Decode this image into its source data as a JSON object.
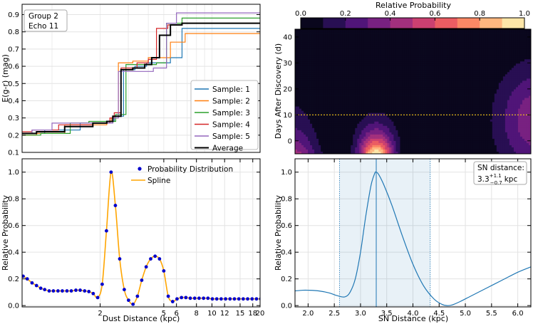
{
  "chart_data": [
    {
      "type": "line",
      "panel": "top-left",
      "title": "",
      "xlabel": "",
      "ylabel": "E(g-r) (mag)",
      "annotation": [
        "Group 2",
        "Echo 11"
      ],
      "xscale": "log",
      "xlim": [
        0.65,
        20
      ],
      "ylim": [
        0.1,
        0.96
      ],
      "yticks": [
        "0.1",
        "0.2",
        "0.3",
        "0.4",
        "0.5",
        "0.6",
        "0.7",
        "0.8",
        "0.9"
      ],
      "grid": true,
      "legend_position": "lower-right",
      "series": [
        {
          "name": "Sample: 1",
          "color": "#1f77b4",
          "x": [
            0.65,
            0.9,
            1.5,
            2.3,
            2.45,
            2.8,
            3.3,
            3.9,
            4.1,
            5.5,
            6.5,
            20
          ],
          "y": [
            0.21,
            0.23,
            0.27,
            0.28,
            0.31,
            0.58,
            0.6,
            0.62,
            0.62,
            0.65,
            0.82,
            0.82
          ]
        },
        {
          "name": "Sample: 2",
          "color": "#ff7f0e",
          "x": [
            0.65,
            0.8,
            1.2,
            2.2,
            2.35,
            2.6,
            3.2,
            4.0,
            5.5,
            6.8,
            20
          ],
          "y": [
            0.2,
            0.21,
            0.26,
            0.28,
            0.3,
            0.62,
            0.63,
            0.65,
            0.74,
            0.79,
            0.79
          ]
        },
        {
          "name": "Sample: 3",
          "color": "#2ca02c",
          "x": [
            0.65,
            0.85,
            1.3,
            1.7,
            2.2,
            2.5,
            2.9,
            3.5,
            4.5,
            5.2,
            6.5,
            20
          ],
          "y": [
            0.2,
            0.21,
            0.27,
            0.28,
            0.28,
            0.32,
            0.61,
            0.61,
            0.62,
            0.85,
            0.88,
            0.88
          ]
        },
        {
          "name": "Sample: 4",
          "color": "#d62728",
          "x": [
            0.65,
            0.75,
            1.1,
            1.8,
            2.3,
            2.45,
            2.7,
            3.4,
            4.0,
            4.5,
            5.3,
            6.5,
            20
          ],
          "y": [
            0.22,
            0.23,
            0.26,
            0.27,
            0.3,
            0.33,
            0.59,
            0.62,
            0.64,
            0.82,
            0.84,
            0.85,
            0.85
          ]
        },
        {
          "name": "Sample: 5",
          "color": "#9467bd",
          "x": [
            0.65,
            0.75,
            1.0,
            2.0,
            2.4,
            2.6,
            3.0,
            4.0,
            4.3,
            5.2,
            6.0,
            20
          ],
          "y": [
            0.21,
            0.23,
            0.27,
            0.27,
            0.3,
            0.57,
            0.57,
            0.57,
            0.59,
            0.85,
            0.91,
            0.91
          ]
        },
        {
          "name": "Average",
          "color": "#000000",
          "x": [
            0.65,
            0.8,
            1.2,
            1.8,
            2.2,
            2.4,
            2.7,
            3.2,
            3.8,
            4.2,
            4.7,
            5.5,
            6.5,
            20
          ],
          "y": [
            0.21,
            0.22,
            0.25,
            0.27,
            0.28,
            0.31,
            0.58,
            0.59,
            0.61,
            0.65,
            0.78,
            0.84,
            0.85,
            0.85
          ]
        }
      ]
    },
    {
      "type": "heatmap",
      "panel": "top-right",
      "colorbar_label": "Relative Probability",
      "colorbar_ticks": [
        "0.0",
        "0.2",
        "0.4",
        "0.6",
        "0.8",
        "1.0"
      ],
      "colorbar_levels": 10,
      "colormap": "magma",
      "xlabel": "",
      "ylabel": "Days After Discovery (d)",
      "xlim": [
        1.75,
        6.25
      ],
      "ylim": [
        -5,
        43
      ],
      "yticks": [
        "0",
        "10",
        "20",
        "30",
        "40"
      ],
      "reference_line": {
        "y": 10,
        "color": "#f5c518",
        "style": "dotted"
      },
      "peak": {
        "x": 3.3,
        "y": -5,
        "value": 1.0
      }
    },
    {
      "type": "scatter",
      "panel": "bottom-left",
      "xlabel": "Dust Distance (kpc)",
      "ylabel": "Relative Probability",
      "xscale": "log",
      "xlim": [
        0.65,
        20
      ],
      "ylim": [
        -0.01,
        1.1
      ],
      "xticks": [
        "2",
        "5",
        "6",
        "8",
        "10",
        "12",
        "15",
        "18",
        "20"
      ],
      "yticks": [
        "0.0",
        "0.2",
        "0.4",
        "0.6",
        "0.8",
        "1.0"
      ],
      "legend_position": "top-right",
      "series": [
        {
          "name": "Probability Distribution",
          "color": "#0000cc",
          "marker": "dot",
          "x": [
            0.66,
            0.7,
            0.75,
            0.8,
            0.85,
            0.9,
            0.96,
            1.02,
            1.09,
            1.16,
            1.24,
            1.32,
            1.41,
            1.5,
            1.6,
            1.7,
            1.81,
            1.93,
            2.06,
            2.19,
            2.34,
            2.49,
            2.65,
            2.83,
            3.01,
            3.21,
            3.42,
            3.64,
            3.88,
            4.14,
            4.41,
            4.7,
            5.0,
            5.33,
            5.68,
            6.05,
            6.45,
            6.87,
            7.32,
            7.8,
            8.31,
            8.86,
            9.44,
            10.06,
            10.72,
            11.42,
            12.17,
            12.97,
            13.82,
            14.73,
            15.69,
            16.72,
            17.82,
            18.99,
            20.2
          ],
          "y": [
            0.22,
            0.2,
            0.17,
            0.15,
            0.13,
            0.12,
            0.11,
            0.11,
            0.11,
            0.11,
            0.11,
            0.11,
            0.115,
            0.115,
            0.11,
            0.105,
            0.09,
            0.06,
            0.16,
            0.56,
            1.0,
            0.75,
            0.35,
            0.12,
            0.04,
            0.01,
            0.07,
            0.19,
            0.29,
            0.35,
            0.37,
            0.35,
            0.26,
            0.07,
            0.03,
            0.05,
            0.06,
            0.06,
            0.055,
            0.055,
            0.055,
            0.055,
            0.055,
            0.05,
            0.05,
            0.05,
            0.05,
            0.05,
            0.05,
            0.05,
            0.05,
            0.05,
            0.05,
            0.05,
            0.05
          ]
        },
        {
          "name": "Spline",
          "color": "#ffa500",
          "type": "line"
        }
      ]
    },
    {
      "type": "line",
      "panel": "bottom-right",
      "xlabel": "SN Distance (kpc)",
      "ylabel": "Relative Probability",
      "xlim": [
        1.75,
        6.25
      ],
      "ylim": [
        -0.01,
        1.1
      ],
      "xticks": [
        "2.0",
        "2.5",
        "3.0",
        "3.5",
        "4.0",
        "4.5",
        "5.0",
        "5.5",
        "6.0"
      ],
      "yticks": [
        "0.0",
        "0.2",
        "0.4",
        "0.6",
        "0.8",
        "1.0"
      ],
      "annotation_line1": "SN distance:",
      "annotation_value": "3.3",
      "annotation_sup": "+1.1",
      "annotation_sub": "−0.7",
      "annotation_unit": "kpc",
      "shaded_range": [
        2.6,
        4.33
      ],
      "marker_line_x": 3.3,
      "series": [
        {
          "color": "#1f77b4",
          "x": [
            1.75,
            1.9,
            2.0,
            2.2,
            2.4,
            2.55,
            2.7,
            2.8,
            2.9,
            3.0,
            3.1,
            3.2,
            3.27,
            3.3,
            3.35,
            3.45,
            3.6,
            3.8,
            4.0,
            4.2,
            4.4,
            4.55,
            4.65,
            4.75,
            4.9,
            5.1,
            5.4,
            5.7,
            6.0,
            6.25
          ],
          "y": [
            0.11,
            0.115,
            0.115,
            0.11,
            0.095,
            0.075,
            0.065,
            0.1,
            0.2,
            0.4,
            0.67,
            0.9,
            0.99,
            1.0,
            0.98,
            0.9,
            0.75,
            0.52,
            0.31,
            0.15,
            0.05,
            0.01,
            0.0,
            0.005,
            0.03,
            0.07,
            0.13,
            0.19,
            0.25,
            0.29
          ]
        }
      ]
    }
  ]
}
